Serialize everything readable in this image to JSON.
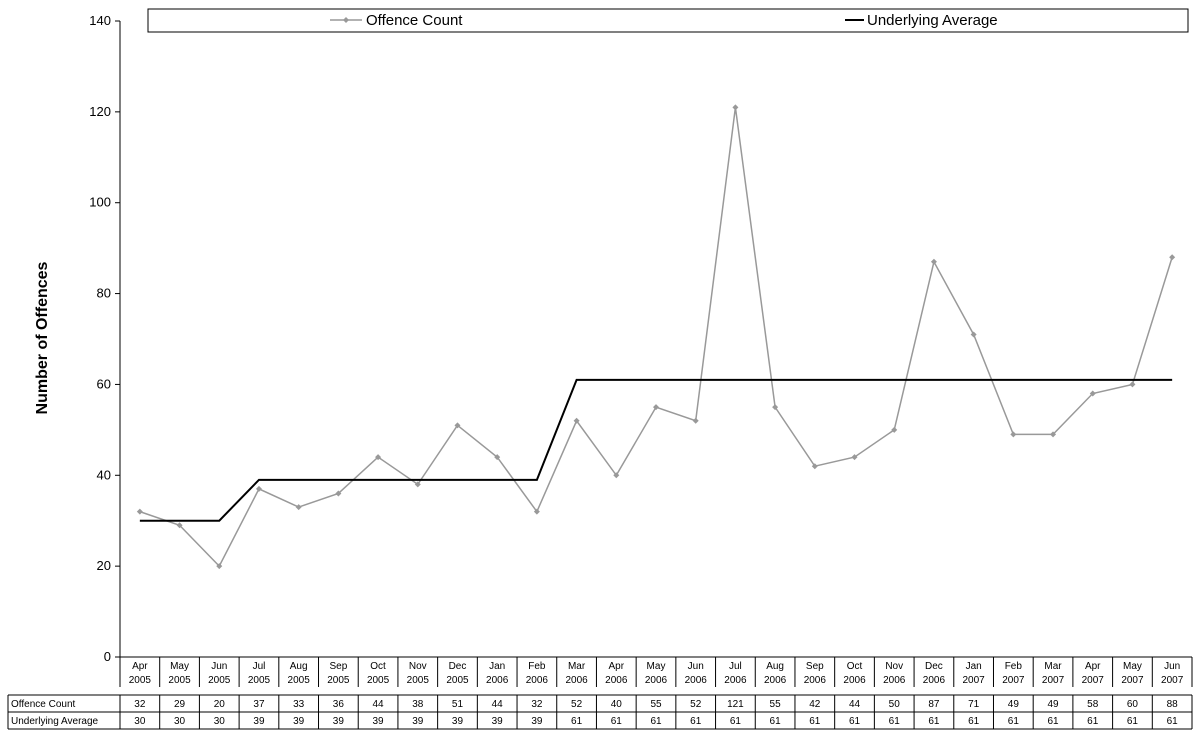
{
  "chart_data": {
    "type": "line",
    "ylabel": "Number of Offences",
    "ylim": [
      0,
      140
    ],
    "yticks": [
      0,
      20,
      40,
      60,
      80,
      100,
      120,
      140
    ],
    "legend_position": "top",
    "categories": [
      [
        "Apr",
        "2005"
      ],
      [
        "May",
        "2005"
      ],
      [
        "Jun",
        "2005"
      ],
      [
        "Jul",
        "2005"
      ],
      [
        "Aug",
        "2005"
      ],
      [
        "Sep",
        "2005"
      ],
      [
        "Oct",
        "2005"
      ],
      [
        "Nov",
        "2005"
      ],
      [
        "Dec",
        "2005"
      ],
      [
        "Jan",
        "2006"
      ],
      [
        "Feb",
        "2006"
      ],
      [
        "Mar",
        "2006"
      ],
      [
        "Apr",
        "2006"
      ],
      [
        "May",
        "2006"
      ],
      [
        "Jun",
        "2006"
      ],
      [
        "Jul",
        "2006"
      ],
      [
        "Aug",
        "2006"
      ],
      [
        "Sep",
        "2006"
      ],
      [
        "Oct",
        "2006"
      ],
      [
        "Nov",
        "2006"
      ],
      [
        "Dec",
        "2006"
      ],
      [
        "Jan",
        "2007"
      ],
      [
        "Feb",
        "2007"
      ],
      [
        "Mar",
        "2007"
      ],
      [
        "Apr",
        "2007"
      ],
      [
        "May",
        "2007"
      ],
      [
        "Jun",
        "2007"
      ]
    ],
    "series": [
      {
        "name": "Offence Count",
        "color": "#999999",
        "marker": "diamond",
        "values": [
          32,
          29,
          20,
          37,
          33,
          36,
          44,
          38,
          51,
          44,
          32,
          52,
          40,
          55,
          52,
          121,
          55,
          42,
          44,
          50,
          87,
          71,
          49,
          49,
          58,
          60,
          88
        ]
      },
      {
        "name": "Underlying Average",
        "color": "#000000",
        "marker": "none",
        "values": [
          30,
          30,
          30,
          39,
          39,
          39,
          39,
          39,
          39,
          39,
          39,
          61,
          61,
          61,
          61,
          61,
          61,
          61,
          61,
          61,
          61,
          61,
          61,
          61,
          61,
          61,
          61
        ]
      }
    ]
  }
}
